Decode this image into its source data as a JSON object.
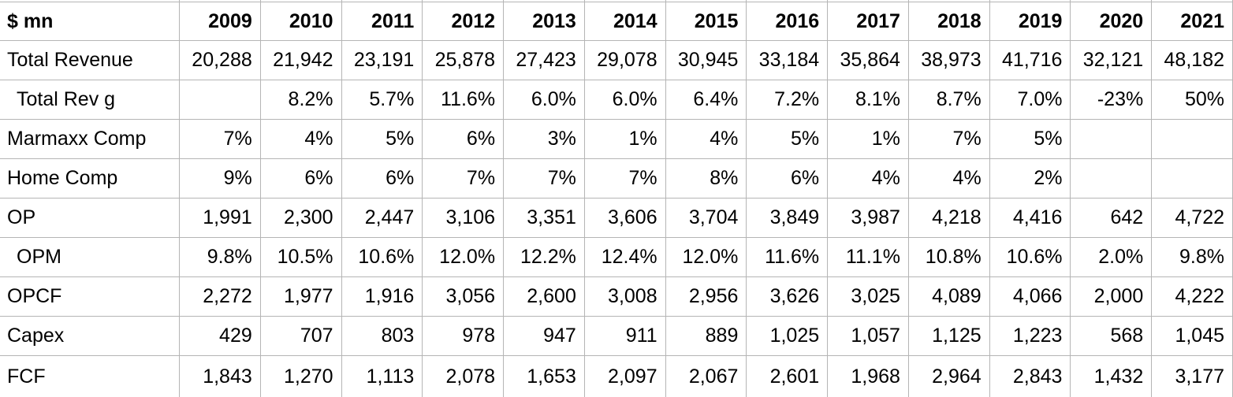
{
  "table": {
    "unit_label": "$ mn",
    "years": [
      "2009",
      "2010",
      "2011",
      "2012",
      "2013",
      "2014",
      "2015",
      "2016",
      "2017",
      "2018",
      "2019",
      "2020",
      "2021"
    ],
    "rows": [
      {
        "label": "Total Revenue",
        "indent": false,
        "values": [
          "20,288",
          "21,942",
          "23,191",
          "25,878",
          "27,423",
          "29,078",
          "30,945",
          "33,184",
          "35,864",
          "38,973",
          "41,716",
          "32,121",
          "48,182"
        ]
      },
      {
        "label": "Total Rev g",
        "indent": true,
        "values": [
          "",
          "8.2%",
          "5.7%",
          "11.6%",
          "6.0%",
          "6.0%",
          "6.4%",
          "7.2%",
          "8.1%",
          "8.7%",
          "7.0%",
          "-23%",
          "50%"
        ]
      },
      {
        "label": "Marmaxx Comp",
        "indent": false,
        "values": [
          "7%",
          "4%",
          "5%",
          "6%",
          "3%",
          "1%",
          "4%",
          "5%",
          "1%",
          "7%",
          "5%",
          "",
          ""
        ]
      },
      {
        "label": "Home Comp",
        "indent": false,
        "values": [
          "9%",
          "6%",
          "6%",
          "7%",
          "7%",
          "7%",
          "8%",
          "6%",
          "4%",
          "4%",
          "2%",
          "",
          ""
        ]
      },
      {
        "label": "OP",
        "indent": false,
        "values": [
          "1,991",
          "2,300",
          "2,447",
          "3,106",
          "3,351",
          "3,606",
          "3,704",
          "3,849",
          "3,987",
          "4,218",
          "4,416",
          "642",
          "4,722"
        ]
      },
      {
        "label": "OPM",
        "indent": true,
        "values": [
          "9.8%",
          "10.5%",
          "10.6%",
          "12.0%",
          "12.2%",
          "12.4%",
          "12.0%",
          "11.6%",
          "11.1%",
          "10.8%",
          "10.6%",
          "2.0%",
          "9.8%"
        ]
      },
      {
        "label": "OPCF",
        "indent": false,
        "values": [
          "2,272",
          "1,977",
          "1,916",
          "3,056",
          "2,600",
          "3,008",
          "2,956",
          "3,626",
          "3,025",
          "4,089",
          "4,066",
          "2,000",
          "4,222"
        ]
      },
      {
        "label": "Capex",
        "indent": false,
        "values": [
          "429",
          "707",
          "803",
          "978",
          "947",
          "911",
          "889",
          "1,025",
          "1,057",
          "1,125",
          "1,223",
          "568",
          "1,045"
        ]
      },
      {
        "label": "FCF",
        "indent": false,
        "values": [
          "1,843",
          "1,270",
          "1,113",
          "2,078",
          "1,653",
          "2,097",
          "2,067",
          "2,601",
          "1,968",
          "2,964",
          "2,843",
          "1,432",
          "3,177"
        ]
      }
    ]
  },
  "colors": {
    "grid": "#b5b5b5",
    "text": "#000000",
    "background": "#ffffff"
  }
}
